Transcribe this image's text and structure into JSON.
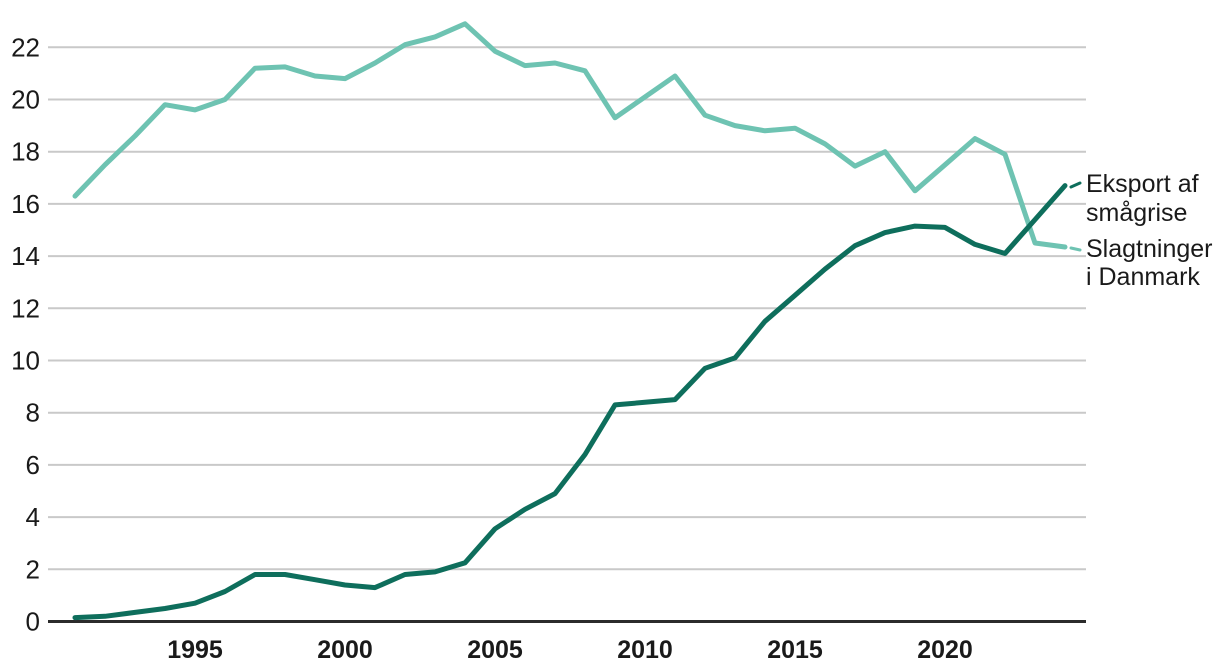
{
  "chart_data": {
    "type": "line",
    "title": "",
    "xlabel": "",
    "ylabel": "",
    "x": [
      1991,
      1992,
      1993,
      1994,
      1995,
      1996,
      1997,
      1998,
      1999,
      2000,
      2001,
      2002,
      2003,
      2004,
      2005,
      2006,
      2007,
      2008,
      2009,
      2010,
      2011,
      2012,
      2013,
      2014,
      2015,
      2016,
      2017,
      2018,
      2019,
      2020,
      2021,
      2022,
      2023,
      2024
    ],
    "series": [
      {
        "name": "Slagtninger i Danmark",
        "color": "#6ec3b2",
        "values": [
          16.3,
          17.5,
          18.6,
          19.8,
          19.6,
          20.0,
          21.2,
          21.25,
          20.9,
          20.8,
          21.4,
          22.1,
          22.4,
          22.9,
          21.85,
          21.3,
          21.4,
          21.1,
          19.3,
          20.1,
          20.9,
          19.4,
          19.0,
          18.8,
          18.9,
          18.3,
          17.45,
          18.0,
          16.5,
          17.5,
          18.5,
          17.9,
          14.5,
          14.35
        ]
      },
      {
        "name": "Eksport af smågrise",
        "color": "#0e6e5c",
        "values": [
          0.15,
          0.2,
          0.35,
          0.5,
          0.7,
          1.15,
          1.8,
          1.8,
          1.6,
          1.4,
          1.3,
          1.8,
          1.9,
          2.25,
          3.55,
          4.3,
          4.9,
          6.4,
          8.3,
          8.4,
          8.5,
          9.7,
          10.1,
          11.5,
          12.5,
          13.5,
          14.4,
          14.9,
          15.15,
          15.1,
          14.45,
          14.1,
          15.4,
          16.7
        ]
      }
    ],
    "xticks": [
      1995,
      2000,
      2005,
      2010,
      2015,
      2020
    ],
    "yticks": [
      0,
      2,
      4,
      6,
      8,
      10,
      12,
      14,
      16,
      18,
      20,
      22
    ],
    "xlim": [
      1991,
      2024
    ],
    "ylim": [
      0,
      23.2
    ],
    "grid": true,
    "legend_position": "right-end-labels",
    "grid_color": "#c9c9c9",
    "axis_color": "#2b2b2b",
    "text_color": "#1a1a1a",
    "end_labels": {
      "eksport_line1": "Eksport af",
      "eksport_line2": "smågrise",
      "slagtninger_line1": "Slagtninger",
      "slagtninger_line2": "i Danmark"
    }
  }
}
